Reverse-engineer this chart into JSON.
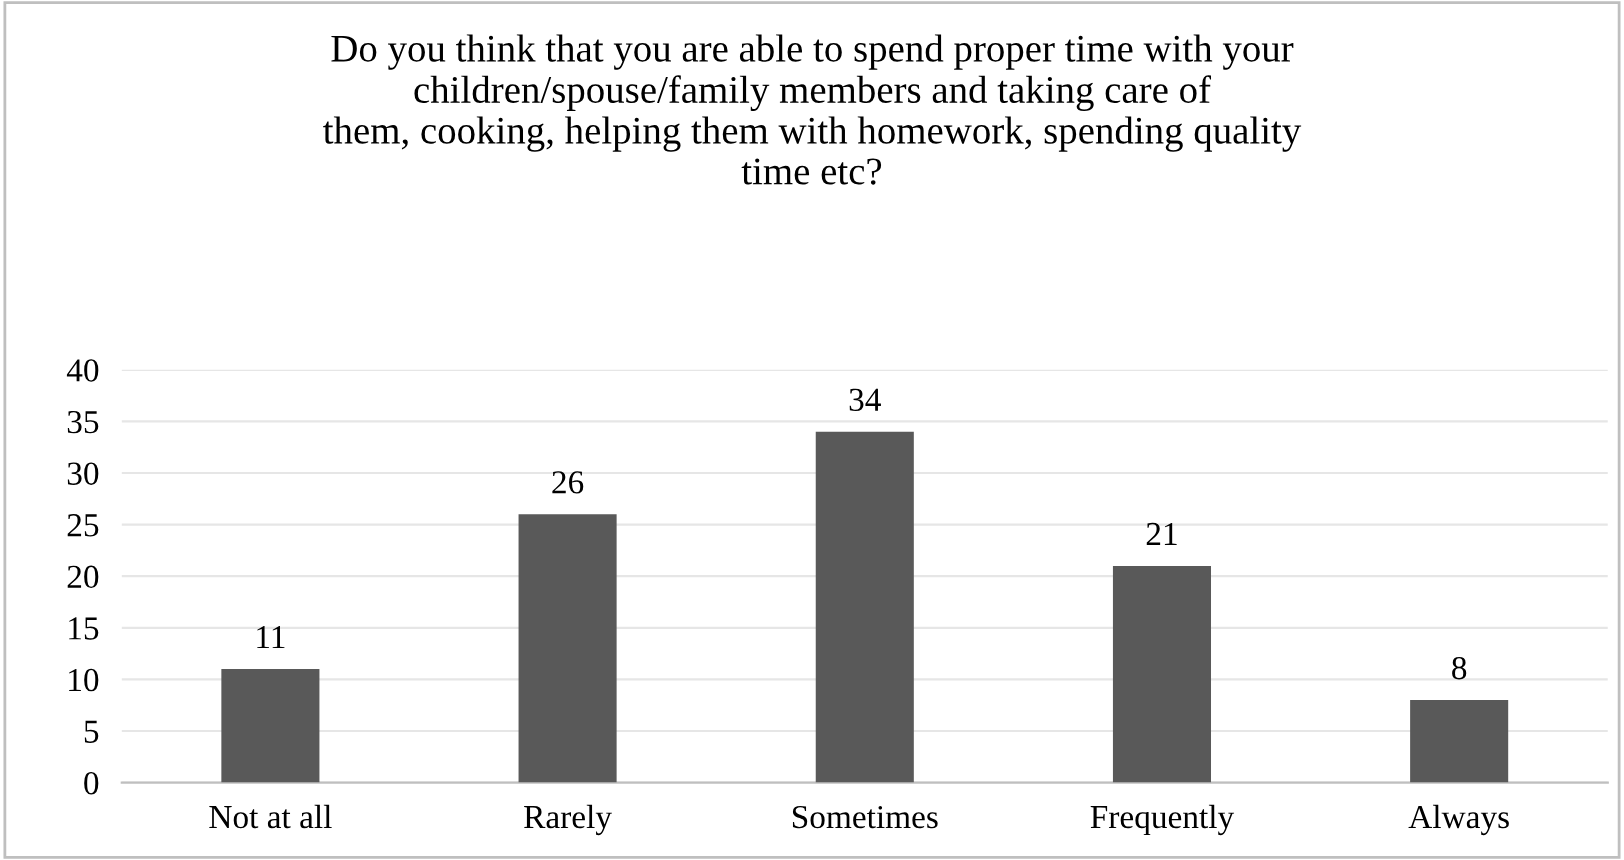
{
  "chart_data": {
    "type": "bar",
    "title": "Do you think that you are able to spend proper time with your\nchildren/spouse/family members and taking care of\nthem, cooking, helping them with homework, spending quality\ntime etc?",
    "categories": [
      "Not at all",
      "Rarely",
      "Sometimes",
      "Frequently",
      "Always"
    ],
    "values": [
      11,
      26,
      34,
      21,
      8
    ],
    "color": "#595959",
    "ylim": [
      0,
      40
    ],
    "yticks": [
      0,
      5,
      10,
      15,
      20,
      25,
      30,
      35,
      40
    ],
    "grid": "y",
    "data_labels": true
  }
}
